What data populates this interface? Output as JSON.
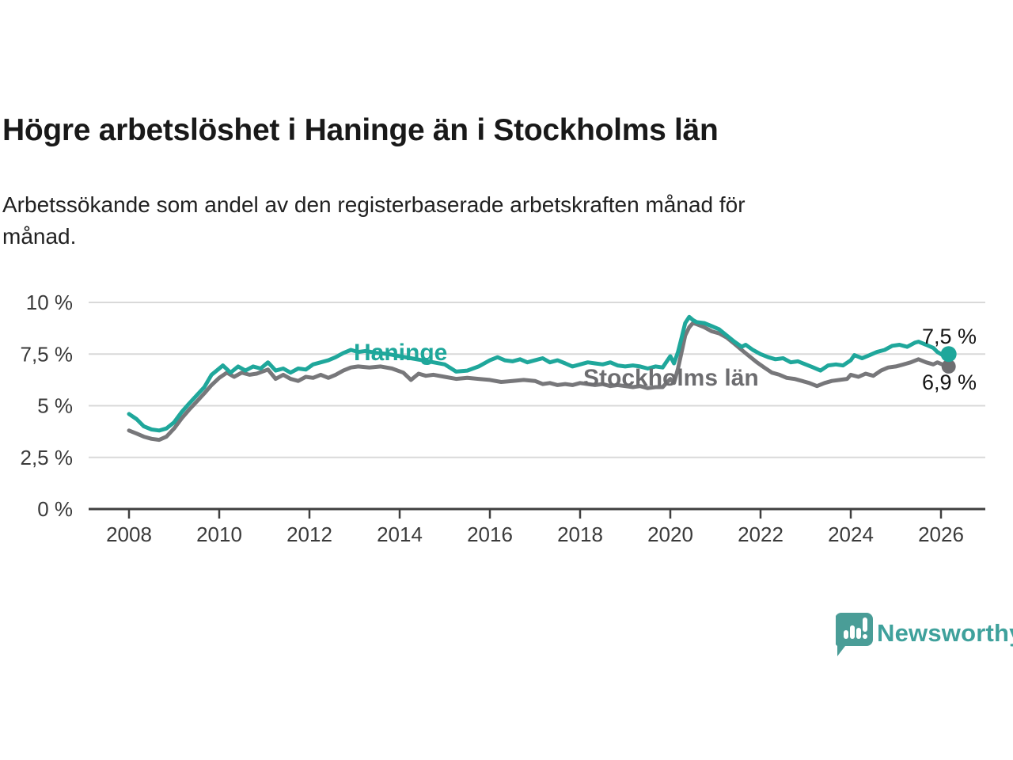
{
  "footer": {
    "brand": "Newsworthy"
  },
  "colors": {
    "haninge": "#1fa79b",
    "stockholm": "#77777a",
    "stockholm_label": "#6d6d70",
    "grid": "#d9d9d9",
    "axis": "#3f3f3f",
    "tick_text": "#3a3a3a",
    "title_text": "#191919",
    "brand_teal": "#4a9d97",
    "brand_text": "#3fa19c"
  },
  "chart_data": {
    "type": "line",
    "title": "Högre arbetslöshet i Haninge än i Stockholms län",
    "subtitle": "Arbetssökande som andel av den registerbaserade arbetskraften månad för månad.",
    "subtitle_lines": [
      "Arbetssökande som andel av den registerbaserade arbetskraften månad för",
      "månad."
    ],
    "unit": "%",
    "ylim": [
      0,
      10
    ],
    "xlim": [
      2007.1,
      2027.0
    ],
    "grid": "horizontal",
    "legend_position": "inline-labels",
    "yticks": [
      {
        "value": 10,
        "label": "10 %"
      },
      {
        "value": 7.5,
        "label": "7,5 %"
      },
      {
        "value": 5,
        "label": "5 %"
      },
      {
        "value": 2.5,
        "label": "2,5 %"
      },
      {
        "value": 0,
        "label": "0 %"
      }
    ],
    "xticks": [
      {
        "value": 2008,
        "label": "2008"
      },
      {
        "value": 2010,
        "label": "2010"
      },
      {
        "value": 2012,
        "label": "2012"
      },
      {
        "value": 2014,
        "label": "2014"
      },
      {
        "value": 2016,
        "label": "2016"
      },
      {
        "value": 2018,
        "label": "2018"
      },
      {
        "value": 2020,
        "label": "2020"
      },
      {
        "value": 2022,
        "label": "2022"
      },
      {
        "value": 2024,
        "label": "2024"
      },
      {
        "value": 2026,
        "label": "2026"
      }
    ],
    "series": [
      {
        "name": "Haninge",
        "color": "#1fa79b",
        "dot_color": "#1fa79b",
        "end_value": 7.5,
        "end_value_label": "7,5 %",
        "points": [
          [
            2008.0,
            4.6
          ],
          [
            2008.17,
            4.35
          ],
          [
            2008.33,
            4.0
          ],
          [
            2008.5,
            3.85
          ],
          [
            2008.67,
            3.8
          ],
          [
            2008.83,
            3.9
          ],
          [
            2009.0,
            4.2
          ],
          [
            2009.17,
            4.7
          ],
          [
            2009.33,
            5.1
          ],
          [
            2009.5,
            5.5
          ],
          [
            2009.67,
            5.9
          ],
          [
            2009.83,
            6.5
          ],
          [
            2010.0,
            6.8
          ],
          [
            2010.08,
            6.95
          ],
          [
            2010.25,
            6.6
          ],
          [
            2010.42,
            6.9
          ],
          [
            2010.58,
            6.7
          ],
          [
            2010.75,
            6.9
          ],
          [
            2010.92,
            6.8
          ],
          [
            2011.08,
            7.1
          ],
          [
            2011.25,
            6.7
          ],
          [
            2011.42,
            6.8
          ],
          [
            2011.58,
            6.6
          ],
          [
            2011.75,
            6.8
          ],
          [
            2011.92,
            6.75
          ],
          [
            2012.08,
            7.0
          ],
          [
            2012.25,
            7.1
          ],
          [
            2012.42,
            7.2
          ],
          [
            2012.58,
            7.35
          ],
          [
            2012.75,
            7.55
          ],
          [
            2012.92,
            7.7
          ],
          [
            2013.08,
            7.6
          ],
          [
            2013.25,
            7.65
          ],
          [
            2013.5,
            7.55
          ],
          [
            2013.75,
            7.5
          ],
          [
            2014.0,
            7.4
          ],
          [
            2014.25,
            7.3
          ],
          [
            2014.5,
            7.2
          ],
          [
            2014.75,
            7.1
          ],
          [
            2015.0,
            7.0
          ],
          [
            2015.25,
            6.65
          ],
          [
            2015.5,
            6.7
          ],
          [
            2015.75,
            6.9
          ],
          [
            2016.0,
            7.2
          ],
          [
            2016.17,
            7.35
          ],
          [
            2016.33,
            7.2
          ],
          [
            2016.5,
            7.15
          ],
          [
            2016.67,
            7.25
          ],
          [
            2016.83,
            7.1
          ],
          [
            2017.0,
            7.2
          ],
          [
            2017.17,
            7.3
          ],
          [
            2017.33,
            7.1
          ],
          [
            2017.5,
            7.2
          ],
          [
            2017.67,
            7.05
          ],
          [
            2017.83,
            6.9
          ],
          [
            2018.0,
            7.0
          ],
          [
            2018.17,
            7.1
          ],
          [
            2018.33,
            7.05
          ],
          [
            2018.5,
            7.0
          ],
          [
            2018.67,
            7.1
          ],
          [
            2018.83,
            6.95
          ],
          [
            2019.0,
            6.9
          ],
          [
            2019.17,
            6.95
          ],
          [
            2019.33,
            6.9
          ],
          [
            2019.5,
            6.8
          ],
          [
            2019.67,
            6.9
          ],
          [
            2019.83,
            6.85
          ],
          [
            2020.0,
            7.4
          ],
          [
            2020.08,
            7.05
          ],
          [
            2020.17,
            7.6
          ],
          [
            2020.25,
            8.3
          ],
          [
            2020.33,
            9.0
          ],
          [
            2020.42,
            9.3
          ],
          [
            2020.5,
            9.15
          ],
          [
            2020.58,
            9.05
          ],
          [
            2020.75,
            9.0
          ],
          [
            2020.92,
            8.85
          ],
          [
            2021.08,
            8.7
          ],
          [
            2021.25,
            8.4
          ],
          [
            2021.42,
            8.1
          ],
          [
            2021.58,
            7.85
          ],
          [
            2021.67,
            7.95
          ],
          [
            2021.83,
            7.7
          ],
          [
            2022.0,
            7.5
          ],
          [
            2022.17,
            7.35
          ],
          [
            2022.33,
            7.25
          ],
          [
            2022.5,
            7.3
          ],
          [
            2022.67,
            7.1
          ],
          [
            2022.83,
            7.15
          ],
          [
            2023.0,
            7.0
          ],
          [
            2023.17,
            6.85
          ],
          [
            2023.33,
            6.7
          ],
          [
            2023.5,
            6.95
          ],
          [
            2023.67,
            7.0
          ],
          [
            2023.83,
            6.95
          ],
          [
            2024.0,
            7.2
          ],
          [
            2024.08,
            7.45
          ],
          [
            2024.25,
            7.3
          ],
          [
            2024.42,
            7.45
          ],
          [
            2024.58,
            7.6
          ],
          [
            2024.75,
            7.7
          ],
          [
            2024.92,
            7.9
          ],
          [
            2025.08,
            7.95
          ],
          [
            2025.25,
            7.85
          ],
          [
            2025.42,
            8.05
          ],
          [
            2025.5,
            8.1
          ],
          [
            2025.67,
            7.95
          ],
          [
            2025.83,
            7.8
          ],
          [
            2025.92,
            7.6
          ],
          [
            2026.08,
            7.4
          ],
          [
            2026.17,
            7.5
          ]
        ]
      },
      {
        "name": "Stockholms län",
        "color": "#77777a",
        "dot_color": "#6e6e71",
        "end_value": 6.9,
        "end_value_label": "6,9 %",
        "points": [
          [
            2008.0,
            3.8
          ],
          [
            2008.17,
            3.65
          ],
          [
            2008.33,
            3.5
          ],
          [
            2008.5,
            3.4
          ],
          [
            2008.67,
            3.35
          ],
          [
            2008.83,
            3.5
          ],
          [
            2009.0,
            3.9
          ],
          [
            2009.17,
            4.4
          ],
          [
            2009.33,
            4.8
          ],
          [
            2009.5,
            5.2
          ],
          [
            2009.67,
            5.6
          ],
          [
            2009.83,
            6.0
          ],
          [
            2010.0,
            6.35
          ],
          [
            2010.17,
            6.6
          ],
          [
            2010.33,
            6.4
          ],
          [
            2010.5,
            6.6
          ],
          [
            2010.67,
            6.5
          ],
          [
            2010.83,
            6.55
          ],
          [
            2011.08,
            6.75
          ],
          [
            2011.25,
            6.3
          ],
          [
            2011.42,
            6.5
          ],
          [
            2011.58,
            6.3
          ],
          [
            2011.75,
            6.2
          ],
          [
            2011.92,
            6.4
          ],
          [
            2012.08,
            6.35
          ],
          [
            2012.25,
            6.5
          ],
          [
            2012.42,
            6.35
          ],
          [
            2012.58,
            6.5
          ],
          [
            2012.75,
            6.7
          ],
          [
            2012.92,
            6.85
          ],
          [
            2013.08,
            6.9
          ],
          [
            2013.33,
            6.85
          ],
          [
            2013.58,
            6.9
          ],
          [
            2013.83,
            6.8
          ],
          [
            2014.08,
            6.6
          ],
          [
            2014.25,
            6.25
          ],
          [
            2014.42,
            6.55
          ],
          [
            2014.58,
            6.45
          ],
          [
            2014.75,
            6.5
          ],
          [
            2015.0,
            6.4
          ],
          [
            2015.25,
            6.3
          ],
          [
            2015.5,
            6.35
          ],
          [
            2015.75,
            6.3
          ],
          [
            2016.0,
            6.25
          ],
          [
            2016.25,
            6.15
          ],
          [
            2016.5,
            6.2
          ],
          [
            2016.75,
            6.25
          ],
          [
            2017.0,
            6.2
          ],
          [
            2017.17,
            6.05
          ],
          [
            2017.33,
            6.1
          ],
          [
            2017.5,
            6.0
          ],
          [
            2017.67,
            6.05
          ],
          [
            2017.83,
            6.0
          ],
          [
            2018.0,
            6.1
          ],
          [
            2018.17,
            6.05
          ],
          [
            2018.33,
            6.0
          ],
          [
            2018.5,
            6.05
          ],
          [
            2018.67,
            5.95
          ],
          [
            2018.83,
            6.0
          ],
          [
            2019.0,
            5.95
          ],
          [
            2019.17,
            5.9
          ],
          [
            2019.33,
            5.95
          ],
          [
            2019.5,
            5.85
          ],
          [
            2019.67,
            5.9
          ],
          [
            2019.83,
            5.9
          ],
          [
            2020.0,
            6.3
          ],
          [
            2020.08,
            6.1
          ],
          [
            2020.17,
            6.8
          ],
          [
            2020.25,
            7.6
          ],
          [
            2020.33,
            8.4
          ],
          [
            2020.42,
            8.8
          ],
          [
            2020.5,
            9.0
          ],
          [
            2020.58,
            8.95
          ],
          [
            2020.75,
            8.8
          ],
          [
            2020.92,
            8.6
          ],
          [
            2021.08,
            8.5
          ],
          [
            2021.25,
            8.3
          ],
          [
            2021.42,
            8.0
          ],
          [
            2021.58,
            7.7
          ],
          [
            2021.75,
            7.4
          ],
          [
            2021.92,
            7.1
          ],
          [
            2022.08,
            6.85
          ],
          [
            2022.25,
            6.6
          ],
          [
            2022.42,
            6.5
          ],
          [
            2022.58,
            6.35
          ],
          [
            2022.75,
            6.3
          ],
          [
            2022.92,
            6.2
          ],
          [
            2023.08,
            6.1
          ],
          [
            2023.25,
            5.95
          ],
          [
            2023.42,
            6.1
          ],
          [
            2023.58,
            6.2
          ],
          [
            2023.75,
            6.25
          ],
          [
            2023.92,
            6.3
          ],
          [
            2024.0,
            6.5
          ],
          [
            2024.17,
            6.4
          ],
          [
            2024.33,
            6.55
          ],
          [
            2024.5,
            6.45
          ],
          [
            2024.67,
            6.7
          ],
          [
            2024.83,
            6.85
          ],
          [
            2025.0,
            6.9
          ],
          [
            2025.17,
            7.0
          ],
          [
            2025.33,
            7.1
          ],
          [
            2025.5,
            7.25
          ],
          [
            2025.67,
            7.1
          ],
          [
            2025.83,
            7.0
          ],
          [
            2025.92,
            7.1
          ],
          [
            2026.08,
            6.95
          ],
          [
            2026.17,
            6.9
          ]
        ]
      }
    ]
  }
}
